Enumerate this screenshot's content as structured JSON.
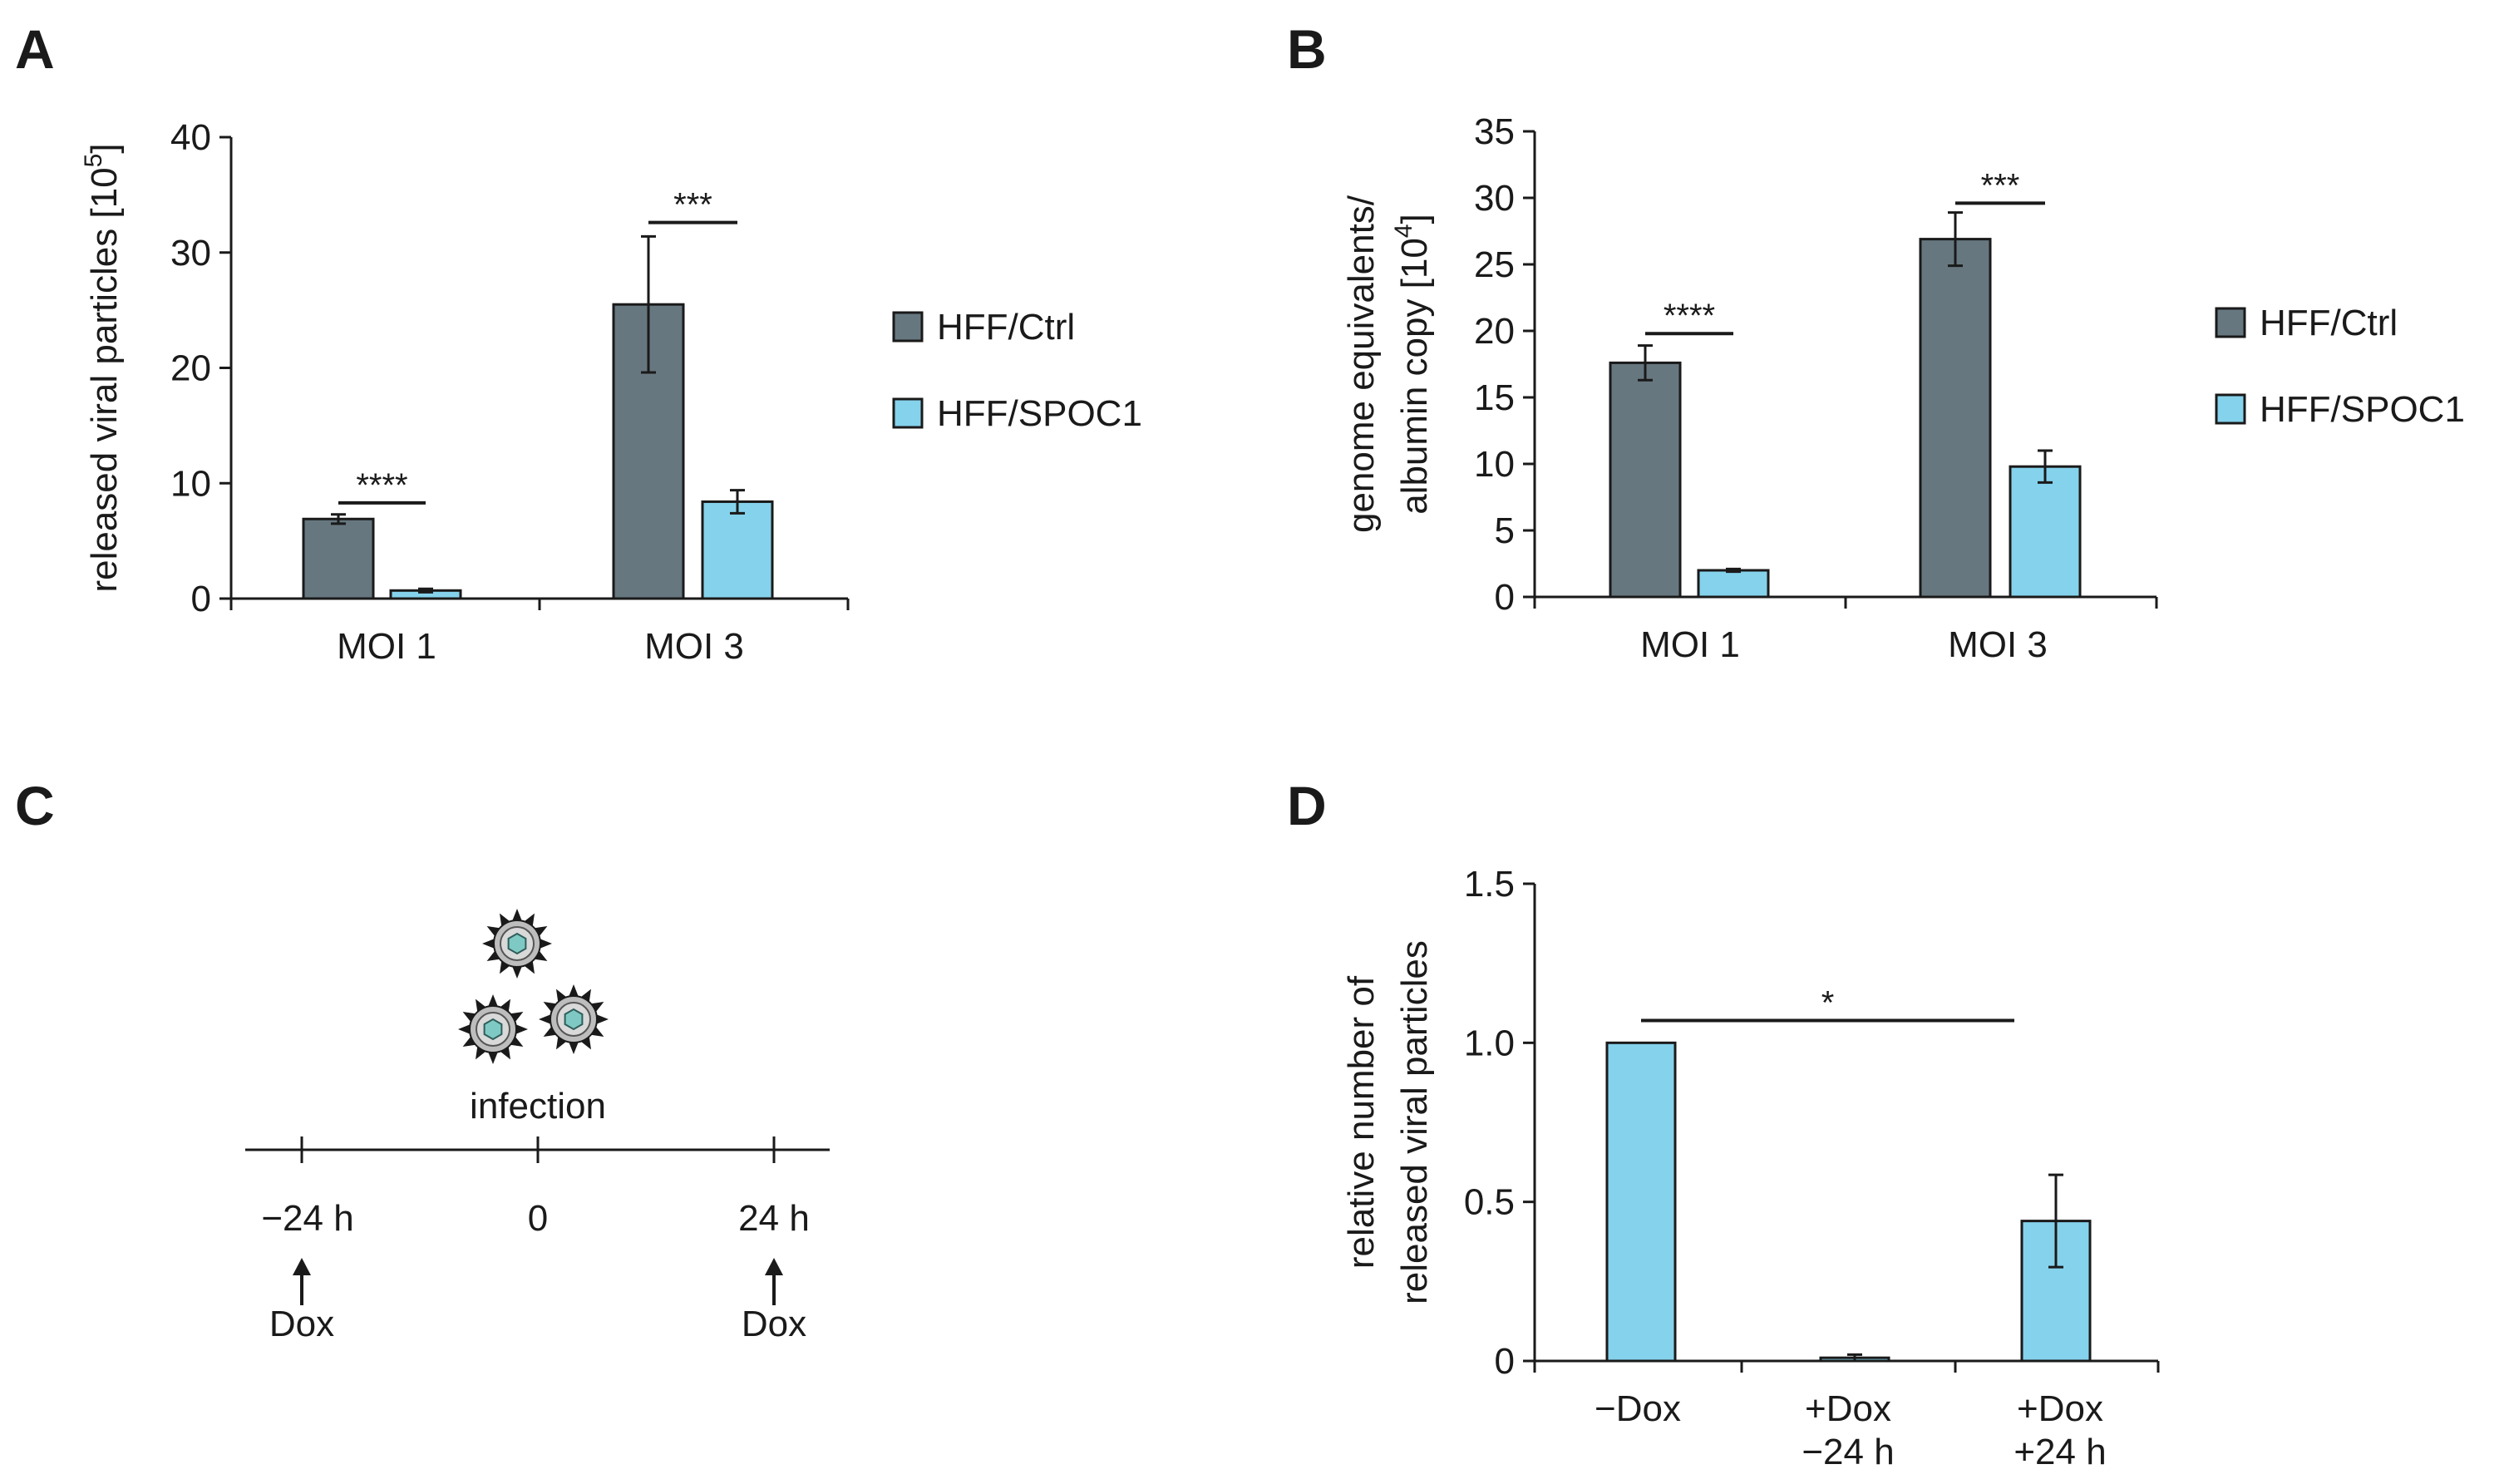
{
  "colors": {
    "ctrl": "#66777f",
    "spoc1": "#85d2ec",
    "ink": "#1a1a1a",
    "virus_core": "#7fc9c4",
    "virus_shell": "#bdbdbd"
  },
  "panel_c": {
    "letter": "C",
    "event_label": "infection",
    "times": [
      "−24 h",
      "0",
      "24 h"
    ],
    "treatments": [
      {
        "time": "−24 h",
        "label": "Dox"
      },
      {
        "time": "24 h",
        "label": "Dox"
      }
    ],
    "icons": [
      "virus-icon",
      "arrow-up-icon"
    ]
  },
  "chart_data": [
    {
      "panel": "A",
      "type": "bar",
      "categories": [
        "MOI 1",
        "MOI 3"
      ],
      "series": [
        {
          "name": "HFF/Ctrl",
          "values": [
            6.9,
            25.5
          ],
          "errors": [
            0.4,
            5.9
          ]
        },
        {
          "name": "HFF/SPOC1",
          "values": [
            0.7,
            8.4
          ],
          "errors": [
            0.15,
            1.0
          ]
        }
      ],
      "ylabel": "released viral particles [10",
      "ylabel_sup": "5",
      "ylabel_end": "]",
      "ylim": [
        0,
        40
      ],
      "yticks": [
        "0",
        "10",
        "20",
        "30",
        "40"
      ],
      "significance": [
        {
          "category": "MOI 1",
          "label": "****",
          "y": 8.3
        },
        {
          "category": "MOI 3",
          "label": "***",
          "y": 32.6
        }
      ],
      "legend": "right",
      "grid": false
    },
    {
      "panel": "B",
      "type": "bar",
      "categories": [
        "MOI 1",
        "MOI 3"
      ],
      "series": [
        {
          "name": "HFF/Ctrl",
          "values": [
            17.6,
            26.9
          ],
          "errors": [
            1.3,
            2.0
          ]
        },
        {
          "name": "HFF/SPOC1",
          "values": [
            2.0,
            9.8
          ],
          "errors": [
            0.1,
            1.2
          ]
        }
      ],
      "ylabel_line1": "genome equivalents/",
      "ylabel": "albumin copy [10",
      "ylabel_sup": "4",
      "ylabel_end": "]",
      "ylim": [
        0,
        35
      ],
      "yticks": [
        "0",
        "5",
        "10",
        "15",
        "20",
        "25",
        "30",
        "35"
      ],
      "significance": [
        {
          "category": "MOI 1",
          "label": "****",
          "y": 19.8
        },
        {
          "category": "MOI 3",
          "label": "***",
          "y": 29.6
        }
      ],
      "legend": "right",
      "grid": false
    },
    {
      "panel": "D",
      "type": "bar",
      "categories": [
        [
          "−Dox"
        ],
        [
          "+Dox",
          "−24 h"
        ],
        [
          "+Dox",
          "+24 h"
        ]
      ],
      "series": [
        {
          "name": "",
          "values": [
            1.0,
            0.01,
            0.44
          ],
          "errors": [
            0,
            0.01,
            0.145
          ]
        }
      ],
      "ylabel_line1": "relative number of",
      "ylabel": "released viral particles",
      "ylim": [
        0,
        1.5
      ],
      "yticks": [
        "0",
        "0.5",
        "1.0",
        "1.5"
      ],
      "significance": [
        {
          "from": 0,
          "to": 2,
          "label": "*",
          "y": 1.07
        }
      ],
      "grid": false
    }
  ]
}
